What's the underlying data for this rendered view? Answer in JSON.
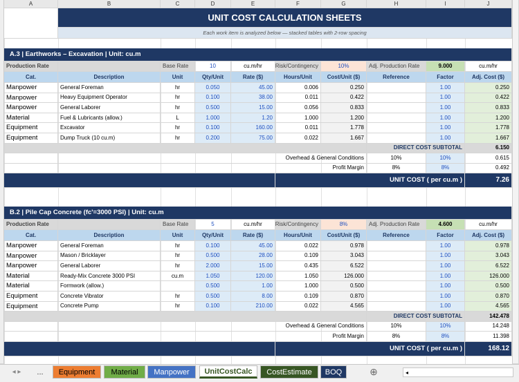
{
  "columns": [
    "A",
    "B",
    "C",
    "D",
    "E",
    "F",
    "G",
    "H",
    "I",
    "J"
  ],
  "title": "UNIT COST CALCULATION SHEETS",
  "subtitle": "Each work item is analyzed below — stacked tables with 2-row spacing",
  "sections": [
    {
      "header": "A.3 | Earthworks – Excavation | Unit: cu.m",
      "production": {
        "label": "Production Rate",
        "base_label": "Base Rate",
        "base": "10",
        "base_unit": "cu.m/hr",
        "risk_label": "Risk/Contingency",
        "risk": "10%",
        "adj_label": "Adj. Production Rate",
        "adj": "9.000",
        "adj_unit": "cu.m/hr"
      },
      "table_header": [
        "Cat.",
        "Description",
        "Unit",
        "Qty/Unit",
        "Rate ($)",
        "Hours/Unit",
        "Cost/Unit ($)",
        "Reference",
        "Factor",
        "Adj. Cost ($)"
      ],
      "rows": [
        {
          "cat": "Manpower",
          "desc": "General Foreman",
          "unit": "hr",
          "qty": "0.050",
          "rate": "45.00",
          "hours": "0.006",
          "cost": "0.250",
          "factor": "1.00",
          "adj": "0.250"
        },
        {
          "cat": "Manpower",
          "desc": "Heavy Equipment Operator",
          "unit": "hr",
          "qty": "0.100",
          "rate": "38.00",
          "hours": "0.011",
          "cost": "0.422",
          "factor": "1.00",
          "adj": "0.422"
        },
        {
          "cat": "Manpower",
          "desc": "General Laborer",
          "unit": "hr",
          "qty": "0.500",
          "rate": "15.00",
          "hours": "0.056",
          "cost": "0.833",
          "factor": "1.00",
          "adj": "0.833"
        },
        {
          "cat": "Material",
          "desc": "Fuel & Lubricants (allow.)",
          "unit": "L",
          "qty": "1.000",
          "rate": "1.20",
          "hours": "1.000",
          "cost": "1.200",
          "factor": "1.00",
          "adj": "1.200"
        },
        {
          "cat": "Equipment",
          "desc": "Excavator",
          "unit": "hr",
          "qty": "0.100",
          "rate": "160.00",
          "hours": "0.011",
          "cost": "1.778",
          "factor": "1.00",
          "adj": "1.778"
        },
        {
          "cat": "Equipment",
          "desc": "Dump Truck (10 cu.m)",
          "unit": "hr",
          "qty": "0.200",
          "rate": "75.00",
          "hours": "0.022",
          "cost": "1.667",
          "factor": "1.00",
          "adj": "1.667"
        }
      ],
      "subtotal_label": "DIRECT COST SUBTOTAL",
      "subtotal": "6.150",
      "overhead": {
        "label": "Overhead & General Conditions",
        "pct": "10%",
        "factor": "10%",
        "value": "0.615"
      },
      "profit": {
        "label": "Profit Margin",
        "pct": "8%",
        "factor": "8%",
        "value": "0.492"
      },
      "unit_cost_label": "UNIT COST  ( per cu.m )",
      "unit_cost": "7.26"
    },
    {
      "header": "B.2 | Pile Cap Concrete (fc'=3000 PSI) | Unit: cu.m",
      "production": {
        "label": "Production Rate",
        "base_label": "Base Rate",
        "base": "5",
        "base_unit": "cu.m/hr",
        "risk_label": "Risk/Contingency",
        "risk": "8%",
        "adj_label": "Adj. Production Rate",
        "adj": "4.600",
        "adj_unit": "cu.m/hr"
      },
      "table_header": [
        "Cat.",
        "Description",
        "Unit",
        "Qty/Unit",
        "Rate ($)",
        "Hours/Unit",
        "Cost/Unit ($)",
        "Reference",
        "Factor",
        "Adj. Cost ($)"
      ],
      "rows": [
        {
          "cat": "Manpower",
          "desc": "General Foreman",
          "unit": "hr",
          "qty": "0.100",
          "rate": "45.00",
          "hours": "0.022",
          "cost": "0.978",
          "factor": "1.00",
          "adj": "0.978"
        },
        {
          "cat": "Manpower",
          "desc": "Mason / Bricklayer",
          "unit": "hr",
          "qty": "0.500",
          "rate": "28.00",
          "hours": "0.109",
          "cost": "3.043",
          "factor": "1.00",
          "adj": "3.043"
        },
        {
          "cat": "Manpower",
          "desc": "General Laborer",
          "unit": "hr",
          "qty": "2.000",
          "rate": "15.00",
          "hours": "0.435",
          "cost": "6.522",
          "factor": "1.00",
          "adj": "6.522"
        },
        {
          "cat": "Material",
          "desc": "Ready-Mix Concrete 3000 PSI",
          "unit": "cu.m",
          "qty": "1.050",
          "rate": "120.00",
          "hours": "1.050",
          "cost": "126.000",
          "factor": "1.00",
          "adj": "126.000"
        },
        {
          "cat": "Material",
          "desc": "Formwork (allow.)",
          "qty": "0.500",
          "rate": "1.00",
          "hours": "1.000",
          "cost": "0.500",
          "factor": "1.00",
          "adj": "0.500"
        },
        {
          "cat": "Equipment",
          "desc": "Concrete Vibrator",
          "unit": "hr",
          "qty": "0.500",
          "rate": "8.00",
          "hours": "0.109",
          "cost": "0.870",
          "factor": "1.00",
          "adj": "0.870"
        },
        {
          "cat": "Equipment",
          "desc": "Concrete Pump",
          "unit": "hr",
          "qty": "0.100",
          "rate": "210.00",
          "hours": "0.022",
          "cost": "4.565",
          "factor": "1.00",
          "adj": "4.565"
        }
      ],
      "subtotal_label": "DIRECT COST SUBTOTAL",
      "subtotal": "142.478",
      "overhead": {
        "label": "Overhead & General Conditions",
        "pct": "10%",
        "factor": "10%",
        "value": "14.248"
      },
      "profit": {
        "label": "Profit Margin",
        "pct": "8%",
        "factor": "8%",
        "value": "11.398"
      },
      "unit_cost_label": "UNIT COST  ( per cu.m )",
      "unit_cost": "168.12"
    }
  ],
  "tabs": [
    "Equipment",
    "Material",
    "Manpower",
    "UnitCostCalc",
    "CostEstimate",
    "BOQ"
  ],
  "tab_more": "..."
}
